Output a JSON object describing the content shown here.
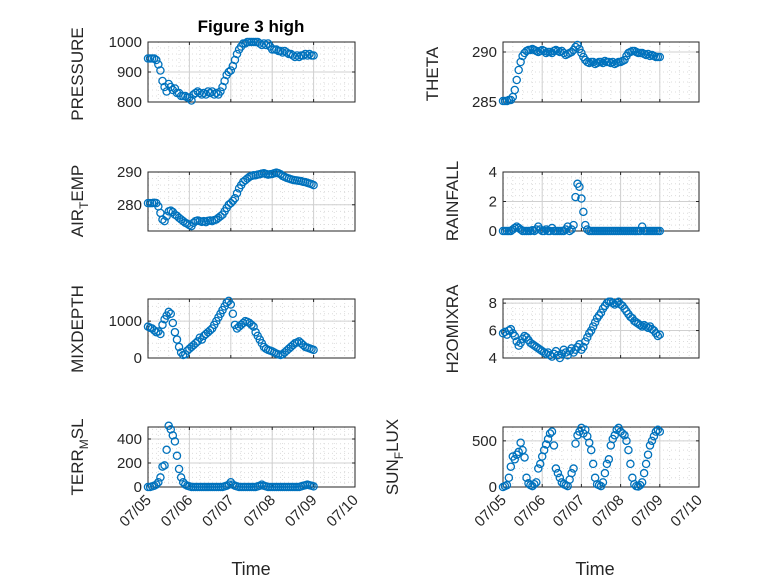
{
  "figure": {
    "title": "Figure 3 high"
  },
  "chart_data": [
    {
      "type": "scatter",
      "ylabel": "PRESSURE",
      "ylim": [
        800,
        1000
      ],
      "yticks": [
        800,
        900,
        1000
      ],
      "x": [
        5.0,
        5.05,
        5.1,
        5.15,
        5.2,
        5.25,
        5.3,
        5.35,
        5.4,
        5.45,
        5.5,
        5.55,
        5.6,
        5.65,
        5.7,
        5.75,
        5.8,
        5.85,
        5.9,
        5.95,
        6.0,
        6.05,
        6.1,
        6.15,
        6.2,
        6.25,
        6.3,
        6.35,
        6.4,
        6.45,
        6.5,
        6.55,
        6.6,
        6.65,
        6.7,
        6.75,
        6.8,
        6.85,
        6.9,
        6.95,
        7.0,
        7.05,
        7.1,
        7.15,
        7.2,
        7.25,
        7.3,
        7.35,
        7.4,
        7.45,
        7.5,
        7.55,
        7.6,
        7.65,
        7.7,
        7.75,
        7.8,
        7.85,
        7.9,
        7.95,
        8.0,
        8.05,
        8.1,
        8.15,
        8.2,
        8.25,
        8.3,
        8.35,
        8.4,
        8.45,
        8.5,
        8.55,
        8.6,
        8.65,
        8.7,
        8.75,
        8.8,
        8.85,
        8.9,
        8.95,
        9.0
      ],
      "y": [
        945,
        945,
        945,
        945,
        940,
        925,
        905,
        870,
        850,
        835,
        860,
        850,
        840,
        845,
        830,
        830,
        820,
        820,
        820,
        815,
        815,
        805,
        825,
        830,
        835,
        830,
        825,
        830,
        825,
        835,
        830,
        835,
        825,
        830,
        825,
        835,
        850,
        870,
        890,
        900,
        905,
        920,
        940,
        960,
        975,
        985,
        995,
        995,
        1000,
        1000,
        1000,
        1000,
        1000,
        1000,
        995,
        990,
        995,
        990,
        995,
        985,
        975,
        975,
        975,
        970,
        970,
        965,
        970,
        965,
        960,
        960,
        955,
        950,
        955,
        950,
        955,
        955,
        960,
        955,
        960,
        955,
        955
      ]
    },
    {
      "type": "scatter",
      "ylabel": "THETA",
      "ylim": [
        285,
        291
      ],
      "yticks": [
        285,
        290
      ],
      "x": [
        5.0,
        5.05,
        5.1,
        5.15,
        5.2,
        5.25,
        5.3,
        5.35,
        5.4,
        5.45,
        5.5,
        5.55,
        5.6,
        5.65,
        5.7,
        5.75,
        5.8,
        5.85,
        5.9,
        5.95,
        6.0,
        6.05,
        6.1,
        6.15,
        6.2,
        6.25,
        6.3,
        6.35,
        6.4,
        6.45,
        6.5,
        6.55,
        6.6,
        6.65,
        6.7,
        6.75,
        6.8,
        6.85,
        6.9,
        6.95,
        7.0,
        7.05,
        7.1,
        7.15,
        7.2,
        7.25,
        7.3,
        7.35,
        7.4,
        7.45,
        7.5,
        7.55,
        7.6,
        7.65,
        7.7,
        7.75,
        7.8,
        7.85,
        7.9,
        7.95,
        8.0,
        8.05,
        8.1,
        8.15,
        8.2,
        8.25,
        8.3,
        8.35,
        8.4,
        8.45,
        8.5,
        8.55,
        8.6,
        8.65,
        8.7,
        8.75,
        8.8,
        8.85,
        8.9,
        8.95,
        9.0
      ],
      "y": [
        285.1,
        285.1,
        285.1,
        285.2,
        285.2,
        285.5,
        286.2,
        287.2,
        288.2,
        289.0,
        289.6,
        289.9,
        290.1,
        290.2,
        290.2,
        290.3,
        290.2,
        290.1,
        290.0,
        290.1,
        290.2,
        290.1,
        289.9,
        290.0,
        290.0,
        289.9,
        290.1,
        290.2,
        290.1,
        290.0,
        290.1,
        289.9,
        289.7,
        289.8,
        289.9,
        290.0,
        290.2,
        290.5,
        290.7,
        290.3,
        289.9,
        289.5,
        289.2,
        289.0,
        288.9,
        289.0,
        289.0,
        288.8,
        288.9,
        289.0,
        289.0,
        288.9,
        289.1,
        289.0,
        289.0,
        288.9,
        289.0,
        288.8,
        288.9,
        289.0,
        289.0,
        289.1,
        289.2,
        289.6,
        289.9,
        290.0,
        290.1,
        290.1,
        290.0,
        289.9,
        289.9,
        289.9,
        289.8,
        289.7,
        289.8,
        289.6,
        289.7,
        289.6,
        289.5,
        289.5,
        289.5
      ]
    },
    {
      "type": "scatter",
      "ylabel": "AIR_TEMP",
      "ylim": [
        272,
        290
      ],
      "yticks": [
        280,
        290
      ],
      "x": [
        5.0,
        5.05,
        5.1,
        5.15,
        5.2,
        5.25,
        5.3,
        5.35,
        5.4,
        5.45,
        5.5,
        5.55,
        5.6,
        5.65,
        5.7,
        5.75,
        5.8,
        5.85,
        5.9,
        5.95,
        6.0,
        6.05,
        6.1,
        6.15,
        6.2,
        6.25,
        6.3,
        6.35,
        6.4,
        6.45,
        6.5,
        6.55,
        6.6,
        6.65,
        6.7,
        6.75,
        6.8,
        6.85,
        6.9,
        6.95,
        7.0,
        7.05,
        7.1,
        7.15,
        7.2,
        7.25,
        7.3,
        7.35,
        7.4,
        7.45,
        7.5,
        7.55,
        7.6,
        7.65,
        7.7,
        7.75,
        7.8,
        7.85,
        7.9,
        7.95,
        8.0,
        8.05,
        8.1,
        8.15,
        8.2,
        8.25,
        8.3,
        8.35,
        8.4,
        8.45,
        8.5,
        8.55,
        8.6,
        8.65,
        8.7,
        8.75,
        8.8,
        8.85,
        8.9,
        8.95,
        9.0
      ],
      "y": [
        280.5,
        280.5,
        280.5,
        280.6,
        280.5,
        279.5,
        277.5,
        275.5,
        275.0,
        276.5,
        278.0,
        278.2,
        277.8,
        277.0,
        276.6,
        276.0,
        275.5,
        275.0,
        274.5,
        274.2,
        273.8,
        273.5,
        274.5,
        275.0,
        275.2,
        275.0,
        274.8,
        275.0,
        274.7,
        275.1,
        275.2,
        275.0,
        275.3,
        275.5,
        276.0,
        276.5,
        277.0,
        278.0,
        279.0,
        280.0,
        280.5,
        281.2,
        282.0,
        283.5,
        285.0,
        286.0,
        287.0,
        287.5,
        288.0,
        288.5,
        288.8,
        289.0,
        289.0,
        289.2,
        289.3,
        289.5,
        289.6,
        289.4,
        289.2,
        289.3,
        289.4,
        289.6,
        289.8,
        289.6,
        289.3,
        288.8,
        288.5,
        288.2,
        288.0,
        287.8,
        287.6,
        287.5,
        287.4,
        287.3,
        287.2,
        287.0,
        286.9,
        286.7,
        286.5,
        286.3,
        286.0
      ]
    },
    {
      "type": "scatter",
      "ylabel": "RAINFALL",
      "ylim": [
        0,
        4
      ],
      "yticks": [
        0,
        2,
        4
      ],
      "x": [
        5.0,
        5.05,
        5.1,
        5.15,
        5.2,
        5.25,
        5.3,
        5.35,
        5.4,
        5.45,
        5.5,
        5.55,
        5.6,
        5.65,
        5.7,
        5.75,
        5.8,
        5.85,
        5.9,
        5.95,
        6.0,
        6.05,
        6.1,
        6.15,
        6.2,
        6.25,
        6.3,
        6.35,
        6.4,
        6.45,
        6.5,
        6.55,
        6.6,
        6.65,
        6.7,
        6.75,
        6.8,
        6.85,
        6.9,
        6.95,
        7.0,
        7.05,
        7.1,
        7.15,
        7.2,
        7.25,
        7.3,
        7.35,
        7.4,
        7.45,
        7.5,
        7.55,
        7.6,
        7.65,
        7.7,
        7.75,
        7.8,
        7.85,
        7.9,
        7.95,
        8.0,
        8.05,
        8.1,
        8.15,
        8.2,
        8.25,
        8.3,
        8.35,
        8.4,
        8.45,
        8.5,
        8.55,
        8.6,
        8.65,
        8.7,
        8.75,
        8.8,
        8.85,
        8.9,
        8.95,
        9.0
      ],
      "y": [
        0,
        0,
        0,
        0,
        0,
        0.1,
        0.2,
        0.3,
        0.2,
        0.1,
        0,
        0,
        0,
        0,
        0,
        0.05,
        0,
        0.1,
        0.3,
        0.1,
        0,
        0,
        0.1,
        0,
        0,
        0.2,
        0,
        0,
        0,
        0,
        0,
        0,
        0.1,
        0.3,
        0,
        0.1,
        0.4,
        2.3,
        3.2,
        3.0,
        2.2,
        1.3,
        0.4,
        0.1,
        0,
        0,
        0,
        0,
        0,
        0,
        0,
        0,
        0,
        0,
        0,
        0,
        0,
        0,
        0,
        0,
        0,
        0,
        0,
        0,
        0,
        0,
        0,
        0,
        0,
        0,
        0,
        0.3,
        0,
        0,
        0,
        0,
        0,
        0,
        0,
        0,
        0
      ]
    },
    {
      "type": "scatter",
      "ylabel": "MIXDEPTH",
      "ylim": [
        0,
        1600
      ],
      "yticks": [
        0,
        1000
      ],
      "x": [
        5.0,
        5.05,
        5.1,
        5.15,
        5.2,
        5.25,
        5.3,
        5.35,
        5.4,
        5.45,
        5.5,
        5.55,
        5.6,
        5.65,
        5.7,
        5.75,
        5.8,
        5.85,
        5.9,
        5.95,
        6.0,
        6.05,
        6.1,
        6.15,
        6.2,
        6.25,
        6.3,
        6.35,
        6.4,
        6.45,
        6.5,
        6.55,
        6.6,
        6.65,
        6.7,
        6.75,
        6.8,
        6.85,
        6.9,
        6.95,
        7.0,
        7.05,
        7.1,
        7.15,
        7.2,
        7.25,
        7.3,
        7.35,
        7.4,
        7.45,
        7.5,
        7.55,
        7.6,
        7.65,
        7.7,
        7.75,
        7.8,
        7.85,
        7.9,
        7.95,
        8.0,
        8.05,
        8.1,
        8.15,
        8.2,
        8.25,
        8.3,
        8.35,
        8.4,
        8.45,
        8.5,
        8.55,
        8.6,
        8.65,
        8.7,
        8.75,
        8.8,
        8.85,
        8.9,
        8.95,
        9.0
      ],
      "y": [
        850,
        820,
        800,
        750,
        700,
        720,
        650,
        900,
        1050,
        1150,
        1250,
        1200,
        950,
        700,
        500,
        300,
        150,
        80,
        100,
        200,
        250,
        300,
        350,
        400,
        450,
        550,
        500,
        600,
        650,
        700,
        750,
        800,
        900,
        1000,
        1100,
        1200,
        1300,
        1400,
        1500,
        1550,
        1450,
        1200,
        900,
        800,
        850,
        900,
        950,
        1000,
        980,
        950,
        900,
        850,
        700,
        600,
        500,
        400,
        300,
        250,
        220,
        200,
        180,
        150,
        120,
        100,
        80,
        100,
        150,
        200,
        250,
        300,
        350,
        400,
        420,
        450,
        400,
        350,
        300,
        280,
        260,
        240,
        220
      ]
    },
    {
      "type": "scatter",
      "ylabel": "H2OMIXRA",
      "ylim": [
        4,
        8.3
      ],
      "yticks": [
        4,
        6,
        8
      ],
      "x": [
        5.0,
        5.05,
        5.1,
        5.15,
        5.2,
        5.25,
        5.3,
        5.35,
        5.4,
        5.45,
        5.5,
        5.55,
        5.6,
        5.65,
        5.7,
        5.75,
        5.8,
        5.85,
        5.9,
        5.95,
        6.0,
        6.05,
        6.1,
        6.15,
        6.2,
        6.25,
        6.3,
        6.35,
        6.4,
        6.45,
        6.5,
        6.55,
        6.6,
        6.65,
        6.7,
        6.75,
        6.8,
        6.85,
        6.9,
        6.95,
        7.0,
        7.05,
        7.1,
        7.15,
        7.2,
        7.25,
        7.3,
        7.35,
        7.4,
        7.45,
        7.5,
        7.55,
        7.6,
        7.65,
        7.7,
        7.75,
        7.8,
        7.85,
        7.9,
        7.95,
        8.0,
        8.05,
        8.1,
        8.15,
        8.2,
        8.25,
        8.3,
        8.35,
        8.4,
        8.45,
        8.5,
        8.55,
        8.6,
        8.65,
        8.7,
        8.75,
        8.8,
        8.85,
        8.9,
        8.95,
        9.0
      ],
      "y": [
        5.8,
        5.9,
        5.7,
        6.0,
        6.1,
        5.8,
        5.6,
        5.2,
        4.9,
        5.1,
        5.4,
        5.6,
        5.5,
        5.3,
        5.1,
        5.0,
        4.9,
        4.8,
        4.7,
        4.6,
        4.5,
        4.4,
        4.3,
        4.4,
        4.2,
        4.1,
        4.3,
        4.5,
        4.2,
        4.0,
        4.3,
        4.6,
        4.4,
        4.2,
        4.5,
        4.7,
        4.4,
        4.6,
        4.8,
        5.0,
        4.6,
        4.8,
        5.2,
        5.5,
        5.8,
        6.0,
        6.3,
        6.6,
        6.9,
        7.1,
        7.3,
        7.6,
        7.8,
        8.0,
        8.1,
        8.1,
        8.0,
        7.9,
        8.0,
        8.1,
        7.9,
        7.8,
        7.6,
        7.4,
        7.2,
        7.0,
        6.9,
        6.7,
        6.6,
        6.5,
        6.4,
        6.3,
        6.4,
        6.3,
        6.2,
        6.3,
        6.1,
        6.0,
        5.8,
        5.6,
        5.7
      ]
    },
    {
      "type": "scatter",
      "ylabel": "TERR_MSL",
      "ylim": [
        0,
        500
      ],
      "yticks": [
        0,
        200,
        400
      ],
      "x": [
        5.0,
        5.05,
        5.1,
        5.15,
        5.2,
        5.25,
        5.3,
        5.35,
        5.4,
        5.45,
        5.5,
        5.55,
        5.6,
        5.65,
        5.7,
        5.75,
        5.8,
        5.85,
        5.9,
        5.95,
        6.0,
        6.05,
        6.1,
        6.15,
        6.2,
        6.25,
        6.3,
        6.35,
        6.4,
        6.45,
        6.5,
        6.55,
        6.6,
        6.65,
        6.7,
        6.75,
        6.8,
        6.85,
        6.9,
        6.95,
        7.0,
        7.05,
        7.1,
        7.15,
        7.2,
        7.25,
        7.3,
        7.35,
        7.4,
        7.45,
        7.5,
        7.55,
        7.6,
        7.65,
        7.7,
        7.75,
        7.8,
        7.85,
        7.9,
        7.95,
        8.0,
        8.05,
        8.1,
        8.15,
        8.2,
        8.25,
        8.3,
        8.35,
        8.4,
        8.45,
        8.5,
        8.55,
        8.6,
        8.65,
        8.7,
        8.75,
        8.8,
        8.85,
        8.9,
        8.95,
        9.0
      ],
      "y": [
        0,
        0,
        5,
        10,
        20,
        40,
        80,
        170,
        180,
        310,
        510,
        480,
        430,
        380,
        260,
        150,
        80,
        40,
        20,
        10,
        5,
        0,
        0,
        0,
        0,
        0,
        0,
        0,
        0,
        0,
        0,
        0,
        0,
        0,
        0,
        0,
        0,
        5,
        10,
        20,
        40,
        20,
        10,
        5,
        0,
        0,
        0,
        0,
        0,
        0,
        0,
        0,
        0,
        5,
        10,
        20,
        10,
        5,
        0,
        0,
        0,
        0,
        0,
        0,
        0,
        0,
        0,
        0,
        0,
        0,
        0,
        0,
        0,
        0,
        5,
        10,
        15,
        20,
        15,
        10,
        5
      ]
    },
    {
      "type": "scatter",
      "ylabel": "SUN_FLUX",
      "ylim": [
        0,
        650
      ],
      "yticks": [
        0,
        500
      ],
      "x": [
        5.0,
        5.05,
        5.1,
        5.15,
        5.2,
        5.25,
        5.3,
        5.35,
        5.4,
        5.45,
        5.5,
        5.55,
        5.6,
        5.65,
        5.7,
        5.75,
        5.8,
        5.85,
        5.9,
        5.95,
        6.0,
        6.05,
        6.1,
        6.15,
        6.2,
        6.25,
        6.3,
        6.35,
        6.4,
        6.45,
        6.5,
        6.55,
        6.6,
        6.65,
        6.7,
        6.75,
        6.8,
        6.85,
        6.9,
        6.95,
        7.0,
        7.05,
        7.1,
        7.15,
        7.2,
        7.25,
        7.3,
        7.35,
        7.4,
        7.45,
        7.5,
        7.55,
        7.6,
        7.65,
        7.7,
        7.75,
        7.8,
        7.85,
        7.9,
        7.95,
        8.0,
        8.05,
        8.1,
        8.15,
        8.2,
        8.25,
        8.3,
        8.35,
        8.4,
        8.45,
        8.5,
        8.55,
        8.6,
        8.65,
        8.7,
        8.75,
        8.8,
        8.85,
        8.9,
        8.95,
        9.0
      ],
      "y": [
        0,
        10,
        20,
        100,
        220,
        330,
        300,
        350,
        380,
        480,
        400,
        320,
        100,
        40,
        20,
        10,
        30,
        50,
        200,
        250,
        330,
        400,
        460,
        520,
        580,
        600,
        450,
        200,
        150,
        100,
        50,
        30,
        20,
        10,
        80,
        150,
        200,
        470,
        560,
        600,
        640,
        580,
        620,
        550,
        480,
        400,
        250,
        100,
        30,
        20,
        10,
        50,
        150,
        250,
        300,
        450,
        520,
        560,
        620,
        640,
        600,
        580,
        560,
        500,
        400,
        250,
        100,
        30,
        10,
        5,
        20,
        50,
        150,
        250,
        350,
        450,
        500,
        550,
        600,
        620,
        600
      ]
    }
  ],
  "x_axis": {
    "xlim": [
      5,
      10
    ],
    "tick_values": [
      5,
      6,
      7,
      8,
      9,
      10
    ],
    "tick_labels": [
      "07/05",
      "07/06",
      "07/07",
      "07/08",
      "07/09",
      "07/10"
    ],
    "label": "Time"
  },
  "style": {
    "marker_color": "#0072bd",
    "axis_color": "#262626",
    "grid_color": "#dcdcdc"
  },
  "labels": {
    "p0_main": "PRESSURE",
    "p1_main": "THETA",
    "p2_pre": "AIR",
    "p2_sub": "T",
    "p2_post": "EMP",
    "p3_main": "RAINFALL",
    "p4_main": "MIXDEPTH",
    "p5_main": "H2OMIXRA",
    "p6_pre": "TERR",
    "p6_sub": "M",
    "p6_post": "SL",
    "p7_pre": "SUN",
    "p7_sub": "F",
    "p7_post": "LUX"
  }
}
